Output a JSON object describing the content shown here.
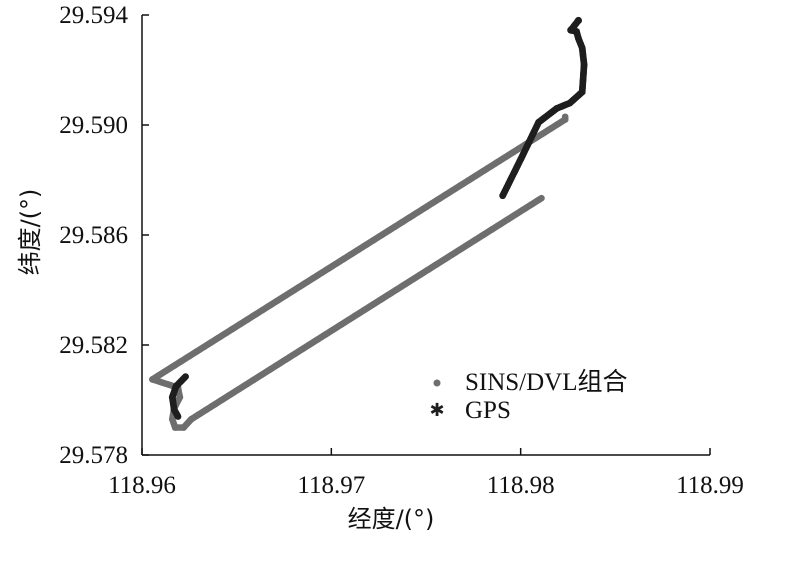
{
  "chart_data": {
    "type": "scatter",
    "xlabel": "经度/(°)",
    "ylabel": "纬度/(°)",
    "xlim": [
      118.96,
      118.99
    ],
    "ylim": [
      29.578,
      29.594
    ],
    "xticks": [
      "118.96",
      "118.97",
      "118.98",
      "118.99"
    ],
    "yticks": [
      "29.578",
      "29.582",
      "29.586",
      "29.590",
      "29.594"
    ],
    "legend_position": "lower-right",
    "grid": false,
    "series": [
      {
        "name": "SINS/DVL组合",
        "marker": "dot",
        "color": "#6e6e6e",
        "x": [
          118.96055,
          118.9619,
          118.962,
          118.9617,
          118.9616,
          118.96175,
          118.9622,
          118.9626,
          118.9811,
          118.98235,
          118.98235
        ],
        "y": [
          29.58075,
          29.58045,
          29.5801,
          29.5797,
          29.5793,
          29.579,
          29.579,
          29.5793,
          29.58734,
          29.5902,
          29.5903
        ]
      },
      {
        "name": "GPS",
        "marker": "star",
        "color": "#1e1e1e",
        "x": [
          118.9623,
          118.9618,
          118.9616,
          118.9617,
          118.9619,
          118.97905,
          118.98,
          118.98095,
          118.9819,
          118.9826,
          118.98325,
          118.98335,
          118.98325,
          118.98305,
          118.98295,
          118.98265,
          118.98305
        ],
        "y": [
          29.58085,
          29.5805,
          29.5801,
          29.57965,
          29.5794,
          29.58743,
          29.58875,
          29.5901,
          29.5906,
          29.5908,
          29.5912,
          29.5922,
          29.5928,
          29.59315,
          29.5934,
          29.59345,
          29.5938
        ]
      }
    ]
  }
}
